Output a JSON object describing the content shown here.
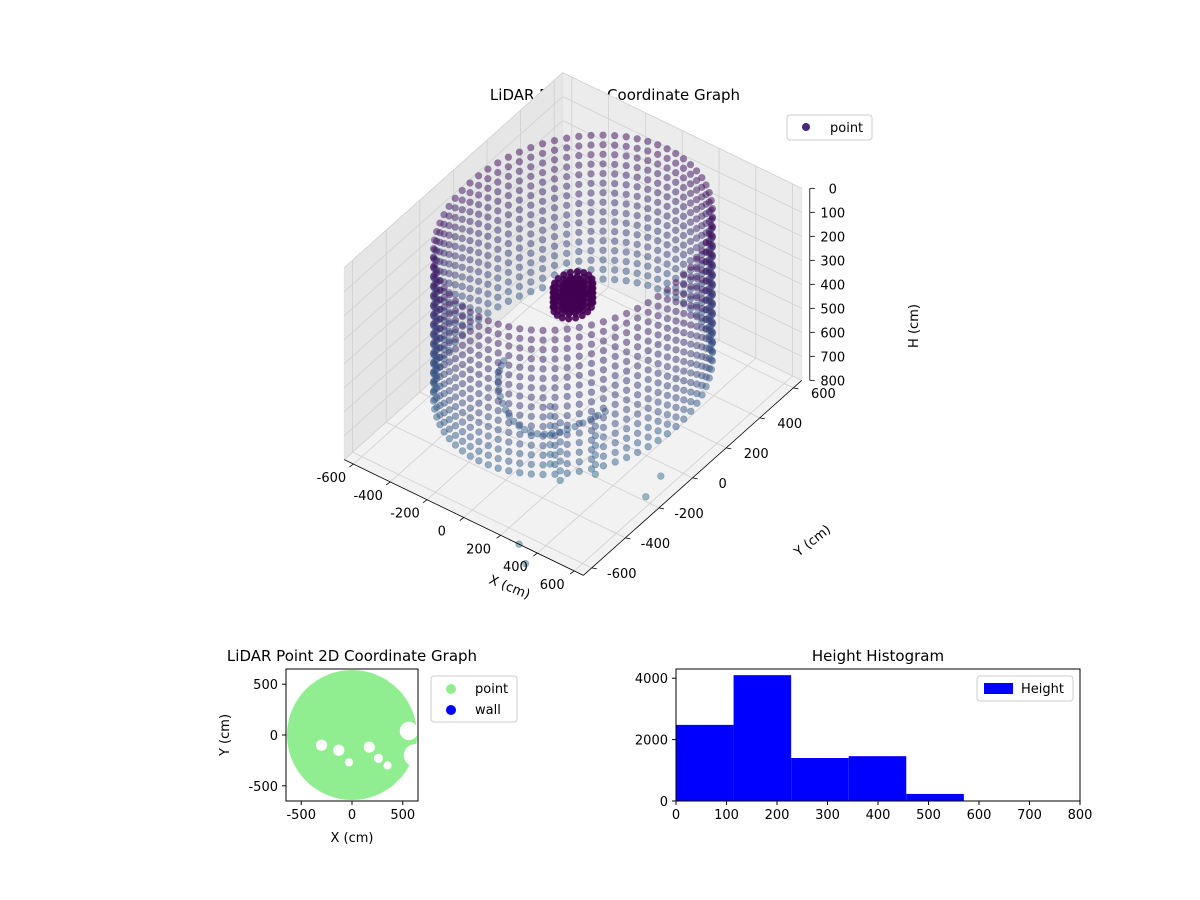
{
  "colors": {
    "point_3d": "#482878",
    "point_2d": "#90ee90",
    "wall": "#0000ff",
    "hist": "#0000ff",
    "pane_floor": "#f2f2f2",
    "pane_left": "#e6e6e6",
    "pane_back": "#ececec",
    "grid": "#d0d0d0",
    "viridis_low": "#440154",
    "viridis_mid": "#31688e",
    "viridis_high": "#35b779"
  },
  "chart_data": [
    {
      "type": "scatter",
      "projection": "3d",
      "title": "LiDAR Point 3D Coordinate Graph",
      "xlabel": "X (cm)",
      "ylabel": "Y (cm)",
      "zlabel": "H (cm)",
      "xlim": [
        -650,
        650
      ],
      "ylim": [
        -650,
        650
      ],
      "zlim": [
        800,
        0
      ],
      "x_ticks": [
        -600,
        -400,
        -200,
        0,
        200,
        400,
        600
      ],
      "y_ticks": [
        -600,
        -400,
        -200,
        0,
        200,
        400,
        600
      ],
      "z_ticks": [
        0,
        100,
        200,
        300,
        400,
        500,
        600,
        700,
        800
      ],
      "grid": true,
      "legend": [
        "point"
      ],
      "legend_position": "upper right",
      "description_of_shape": "ring wall of points at radius ~560 cm spanning heights 20-620 cm, central cluster near origin at heights ~240-300, floor clutter and vertical posts",
      "ring": {
        "radius": 560,
        "h_min": 20,
        "h_max": 620,
        "h_step": 40,
        "angle_step_deg": 5
      },
      "central_cluster": {
        "x": 0,
        "y": 0,
        "h_min": 240,
        "h_max": 320,
        "radius": 80
      },
      "outliers": [
        {
          "x": 300,
          "y": -650,
          "h": 800
        },
        {
          "x": 400,
          "y": -720,
          "h": 800
        },
        {
          "x": 550,
          "y": -80,
          "h": 780
        },
        {
          "x": 560,
          "y": -180,
          "h": 800
        }
      ]
    },
    {
      "type": "scatter",
      "title": "LiDAR Point 2D Coordinate Graph",
      "xlabel": "X (cm)",
      "ylabel": "Y (cm)",
      "xlim": [
        -650,
        650
      ],
      "ylim": [
        -650,
        650
      ],
      "x_ticks": [
        -500,
        0,
        500
      ],
      "y_ticks": [
        -500,
        0,
        500
      ],
      "legend": [
        "point",
        "wall"
      ],
      "legend_position": "outside right",
      "fill_radius": 640,
      "holes": [
        {
          "x": 560,
          "y": 40,
          "r": 90
        },
        {
          "x": 620,
          "y": -200,
          "r": 110
        },
        {
          "x": 560,
          "y": -550,
          "r": 150
        },
        {
          "x": -300,
          "y": -100,
          "r": 55
        },
        {
          "x": -130,
          "y": -150,
          "r": 55
        },
        {
          "x": -30,
          "y": -270,
          "r": 40
        },
        {
          "x": 170,
          "y": -120,
          "r": 55
        },
        {
          "x": 260,
          "y": -230,
          "r": 45
        },
        {
          "x": 350,
          "y": -300,
          "r": 40
        }
      ],
      "white_corners": [
        {
          "x": -650,
          "y": 650
        },
        {
          "x": 650,
          "y": 650
        }
      ]
    },
    {
      "type": "bar",
      "subtype": "histogram",
      "title": "Height Histogram",
      "xlabel": "",
      "ylabel": "",
      "legend": [
        "Height"
      ],
      "legend_position": "upper right",
      "xlim": [
        0,
        800
      ],
      "ylim": [
        0,
        4300
      ],
      "x_ticks": [
        0,
        100,
        200,
        300,
        400,
        500,
        600,
        700,
        800
      ],
      "y_ticks": [
        0,
        2000,
        4000
      ],
      "bin_edges": [
        0,
        114,
        228,
        342,
        456,
        570,
        684,
        800
      ],
      "values": [
        2480,
        4100,
        1400,
        1460,
        230,
        0,
        0
      ]
    }
  ]
}
